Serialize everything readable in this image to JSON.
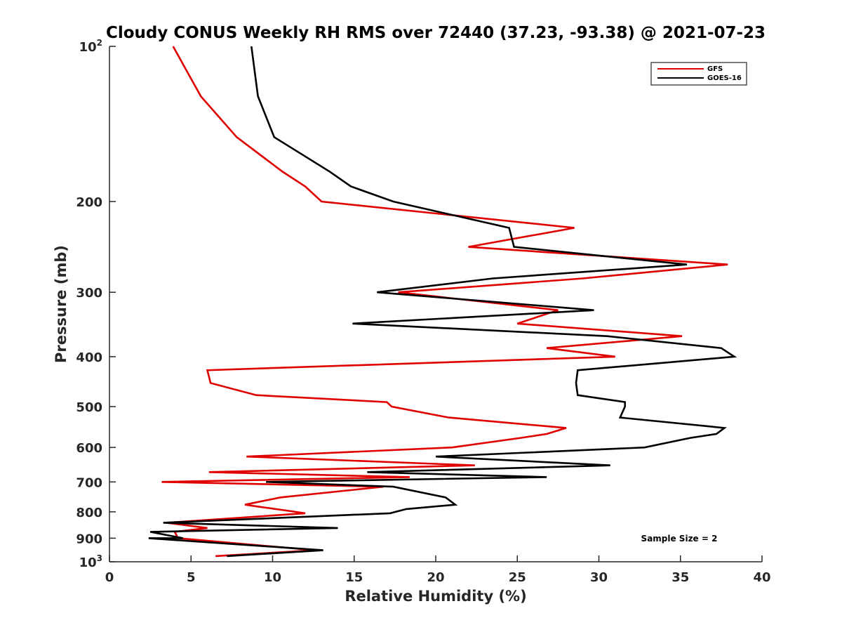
{
  "chart_data": {
    "type": "line",
    "title": "Cloudy CONUS Weekly RH RMS over 72440 (37.23, -93.38) @ 2021-07-23",
    "xlabel": "Relative Humidity (%)",
    "ylabel": "Pressure (mb)",
    "xlim": [
      0,
      40
    ],
    "ylim": [
      100,
      1000
    ],
    "yscale": "log",
    "y_reversed": true,
    "grid": false,
    "legend_position": "top-right",
    "annotation": "Sample Size = 2",
    "x_ticks": [
      {
        "value": 0,
        "label": "0"
      },
      {
        "value": 5,
        "label": "5"
      },
      {
        "value": 10,
        "label": "10"
      },
      {
        "value": 15,
        "label": "15"
      },
      {
        "value": 20,
        "label": "20"
      },
      {
        "value": 25,
        "label": "25"
      },
      {
        "value": 30,
        "label": "30"
      },
      {
        "value": 35,
        "label": "35"
      },
      {
        "value": 40,
        "label": "40"
      }
    ],
    "y_ticks": [
      {
        "value": 100,
        "label": "10",
        "sup": "2"
      },
      {
        "value": 200,
        "label": "200",
        "sup": ""
      },
      {
        "value": 300,
        "label": "300",
        "sup": ""
      },
      {
        "value": 400,
        "label": "400",
        "sup": ""
      },
      {
        "value": 500,
        "label": "500",
        "sup": ""
      },
      {
        "value": 600,
        "label": "600",
        "sup": ""
      },
      {
        "value": 700,
        "label": "700",
        "sup": ""
      },
      {
        "value": 800,
        "label": "800",
        "sup": ""
      },
      {
        "value": 900,
        "label": "900",
        "sup": ""
      },
      {
        "value": 1000,
        "label": "10",
        "sup": "3"
      }
    ],
    "series": [
      {
        "name": "GFS",
        "color": "#e00000",
        "points": [
          [
            3.9,
            100
          ],
          [
            5.6,
            125
          ],
          [
            7.8,
            150
          ],
          [
            10.6,
            175
          ],
          [
            12.0,
            187
          ],
          [
            13.0,
            200
          ],
          [
            28.5,
            225
          ],
          [
            22.0,
            245
          ],
          [
            37.9,
            265
          ],
          [
            29.0,
            282
          ],
          [
            17.7,
            300
          ],
          [
            27.5,
            325
          ],
          [
            25.0,
            345
          ],
          [
            35.1,
            365
          ],
          [
            26.8,
            385
          ],
          [
            31.0,
            400
          ],
          [
            6.0,
            425
          ],
          [
            6.2,
            450
          ],
          [
            9.0,
            475
          ],
          [
            17.0,
            490
          ],
          [
            17.3,
            500
          ],
          [
            20.8,
            525
          ],
          [
            28.0,
            550
          ],
          [
            26.8,
            565
          ],
          [
            25.2,
            575
          ],
          [
            21.0,
            600
          ],
          [
            8.4,
            625
          ],
          [
            22.4,
            650
          ],
          [
            6.1,
            670
          ],
          [
            18.4,
            685
          ],
          [
            3.2,
            700
          ],
          [
            16.8,
            715
          ],
          [
            10.5,
            750
          ],
          [
            8.3,
            775
          ],
          [
            12.0,
            805
          ],
          [
            3.5,
            840
          ],
          [
            6.0,
            860
          ],
          [
            4.0,
            875
          ],
          [
            4.2,
            900
          ],
          [
            12.6,
            950
          ],
          [
            6.5,
            975
          ]
        ]
      },
      {
        "name": "GOES-16",
        "color": "#000000",
        "points": [
          [
            8.7,
            100
          ],
          [
            9.1,
            125
          ],
          [
            10.1,
            150
          ],
          [
            13.5,
            175
          ],
          [
            14.8,
            187
          ],
          [
            17.4,
            200
          ],
          [
            24.5,
            225
          ],
          [
            24.8,
            245
          ],
          [
            35.4,
            265
          ],
          [
            23.5,
            282
          ],
          [
            16.4,
            300
          ],
          [
            29.7,
            325
          ],
          [
            14.9,
            345
          ],
          [
            30.5,
            365
          ],
          [
            37.5,
            385
          ],
          [
            38.3,
            400
          ],
          [
            28.7,
            425
          ],
          [
            28.6,
            450
          ],
          [
            28.7,
            475
          ],
          [
            31.6,
            490
          ],
          [
            31.6,
            500
          ],
          [
            31.3,
            525
          ],
          [
            37.7,
            550
          ],
          [
            37.2,
            565
          ],
          [
            35.6,
            575
          ],
          [
            32.8,
            600
          ],
          [
            20.0,
            625
          ],
          [
            30.7,
            650
          ],
          [
            15.8,
            670
          ],
          [
            26.8,
            685
          ],
          [
            9.6,
            700
          ],
          [
            17.4,
            715
          ],
          [
            20.6,
            750
          ],
          [
            21.2,
            775
          ],
          [
            18.2,
            790
          ],
          [
            17.2,
            805
          ],
          [
            3.3,
            840
          ],
          [
            14.0,
            860
          ],
          [
            2.5,
            875
          ],
          [
            4.5,
            900
          ],
          [
            2.4,
            900
          ],
          [
            13.1,
            950
          ],
          [
            7.2,
            975
          ]
        ]
      }
    ]
  }
}
